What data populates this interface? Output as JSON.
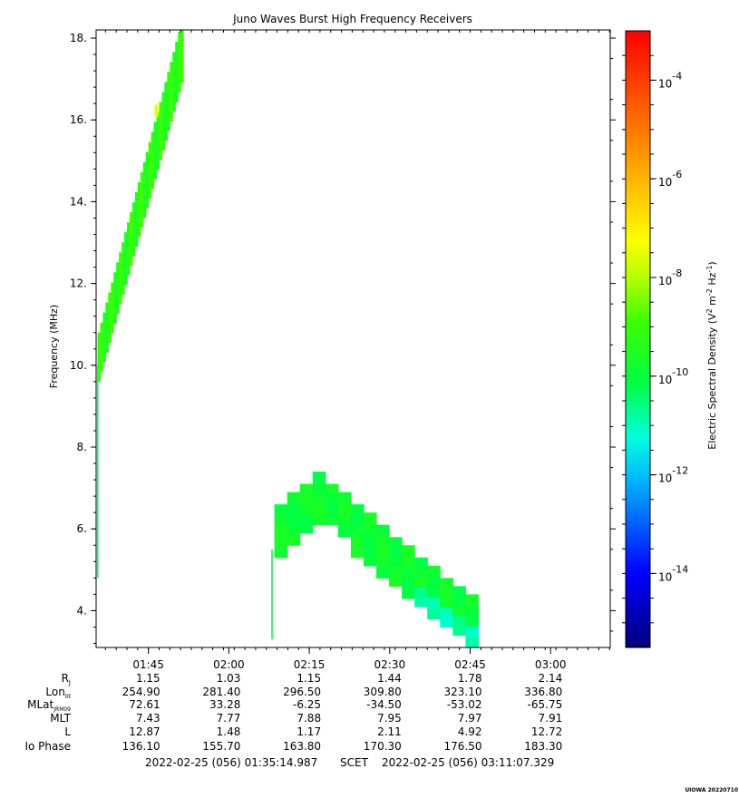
{
  "chart_data": {
    "type": "heatmap",
    "title": "Juno Waves Burst High Frequency Receivers",
    "ylabel": "Frequency (MHz)",
    "ylim": [
      3.1,
      18.2
    ],
    "yticks": [
      4,
      6,
      8,
      10,
      12,
      14,
      16,
      18
    ],
    "ytick_labels": [
      "4.",
      "6.",
      "8.",
      "10.",
      "12.",
      "14.",
      "16.",
      "18."
    ],
    "xlim": [
      "01:35:14.987",
      "03:11:07.329"
    ],
    "xticks": [
      "01:45",
      "02:00",
      "02:15",
      "02:30",
      "02:45",
      "03:00"
    ],
    "colorbar": {
      "label": "Electric Spectral Density (V² m⁻² Hz⁻¹)",
      "label_main": "Electric Spectral Density (V",
      "label_sup1": "2",
      "label_mid": " m",
      "label_sup2": "-2",
      "label_mid2": " Hz",
      "label_sup3": "-1",
      "label_end": ")",
      "scale": "log",
      "range_exp": [
        -15.5,
        -3.0
      ],
      "ticks": [
        {
          "base": "10",
          "exp": "-4",
          "value": -4
        },
        {
          "base": "10",
          "exp": "-6",
          "value": -6
        },
        {
          "base": "10",
          "exp": "-8",
          "value": -8
        },
        {
          "base": "10",
          "exp": "-10",
          "value": -10
        },
        {
          "base": "10",
          "exp": "-12",
          "value": -12
        },
        {
          "base": "10",
          "exp": "-14",
          "value": -14
        }
      ]
    },
    "features": [
      {
        "name": "",
        "time_start": "01:35:30",
        "time_end": "01:36:00",
        "freq_range": [
          4.8,
          10.0
        ],
        "log_density": -10.5
      },
      {
        "name": "",
        "time_range": [
          "01:35:30",
          "01:51:30"
        ],
        "freq_range": [
          9.6,
          18.2
        ],
        "log_density": -9.5,
        "peak_log_density": -7.5,
        "peak_freq": 16.2,
        "peak_time": "01:46:30"
      },
      {
        "name": "",
        "time_start": "02:08:00",
        "time_end": "02:08:30",
        "freq_range": [
          3.3,
          5.5
        ],
        "log_density": -10.2
      },
      {
        "name": "",
        "time_range": [
          "02:08:30",
          "02:46:30"
        ],
        "freq_range": [
          3.1,
          7.4
        ],
        "log_density": -10.0
      }
    ],
    "ephemeris": {
      "labels": {
        "rj": "R",
        "rj_sub": "J",
        "lon": "Lon",
        "lon_sub": "III",
        "mlat": "MLat",
        "mlat_sub": "JRM09",
        "mlt": "MLT",
        "l": "L",
        "io": "Io Phase"
      },
      "rows": {
        "rj": [
          "1.15",
          "1.03",
          "1.15",
          "1.44",
          "1.78",
          "2.14"
        ],
        "lon": [
          "254.90",
          "281.40",
          "296.50",
          "309.80",
          "323.10",
          "336.80"
        ],
        "mlat": [
          "72.61",
          "33.28",
          "-6.25",
          "-34.50",
          "-53.02",
          "-65.75"
        ],
        "mlt": [
          "7.43",
          "7.77",
          "7.88",
          "7.95",
          "7.97",
          "7.91"
        ],
        "l": [
          "12.87",
          "1.48",
          "1.17",
          "2.11",
          "4.92",
          "12.72"
        ],
        "io": [
          "136.10",
          "155.70",
          "163.80",
          "170.30",
          "176.50",
          "183.30"
        ]
      }
    },
    "time_start_label": "2022-02-25 (056) 01:35:14.987",
    "scet_label": "SCET",
    "time_end_label": "2022-02-25 (056) 03:11:07.329",
    "footer_tag": "UIOWA 20220710"
  }
}
